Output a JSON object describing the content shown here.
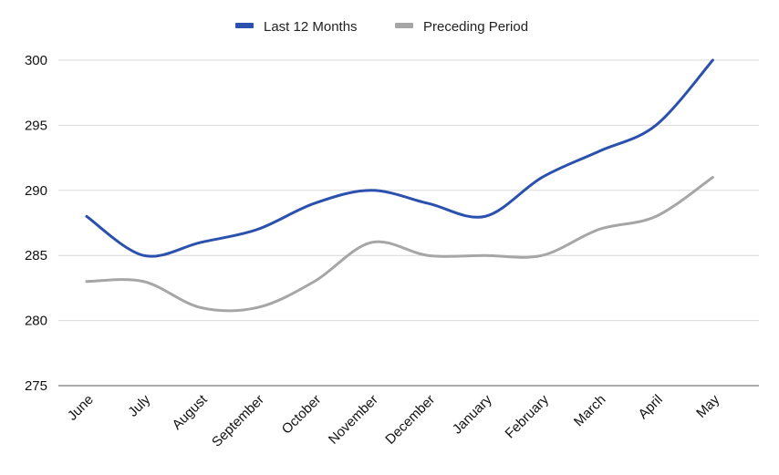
{
  "chart_data": {
    "type": "line",
    "title": "",
    "xlabel": "",
    "ylabel": "",
    "categories": [
      "June",
      "July",
      "August",
      "September",
      "October",
      "November",
      "December",
      "January",
      "February",
      "March",
      "April",
      "May"
    ],
    "ylim": [
      275,
      300
    ],
    "yticks": [
      275,
      280,
      285,
      290,
      295,
      300
    ],
    "grid": true,
    "legend_position": "top-center",
    "series": [
      {
        "name": "Last 12 Months",
        "color": "#2b50ad",
        "values": [
          288,
          285,
          286,
          287,
          289,
          290,
          289,
          288,
          291,
          293,
          295,
          300
        ]
      },
      {
        "name": "Preceding Period",
        "color": "#a6a6a6",
        "values": [
          283,
          283,
          281,
          281,
          283,
          286,
          285,
          285,
          285,
          287,
          288,
          291
        ]
      }
    ]
  }
}
